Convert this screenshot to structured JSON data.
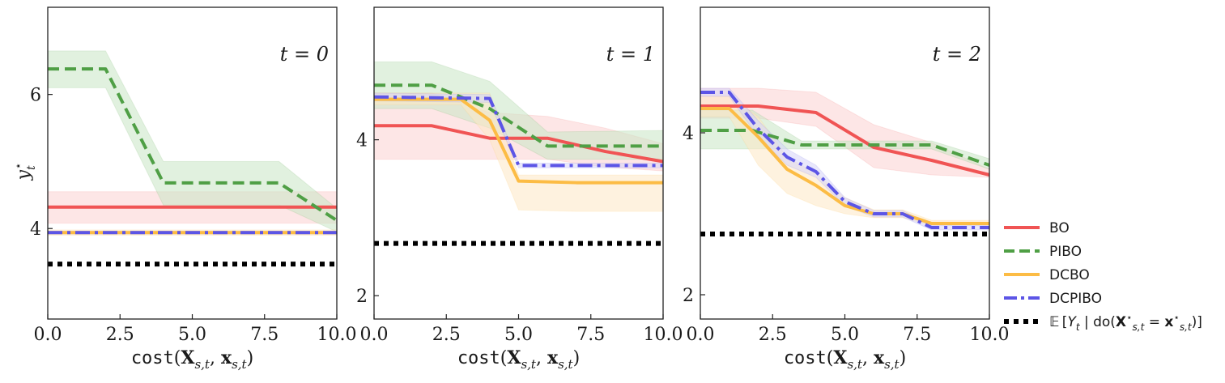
{
  "chart_data": [
    {
      "type": "line",
      "panel_label": "t = 0",
      "ylabel": "y*_t",
      "xlabel": "cost(X_{s,t}, x_{s,t})",
      "xlim": [
        0,
        10
      ],
      "ylim": [
        2.65,
        7.3
      ],
      "xticks": [
        "0.0",
        "2.5",
        "5.0",
        "7.5",
        "10.0"
      ],
      "yticks": [
        4,
        6
      ],
      "series": [
        {
          "name": "BO",
          "x": [
            0,
            10
          ],
          "y": [
            4.32,
            4.32
          ],
          "band_low": [
            4.08,
            4.08
          ],
          "band_high": [
            4.55,
            4.55
          ]
        },
        {
          "name": "PIBO",
          "x": [
            0,
            2,
            4,
            8,
            10
          ],
          "y": [
            6.38,
            6.38,
            4.68,
            4.68,
            4.12
          ],
          "band_low": [
            6.1,
            6.1,
            4.35,
            4.35,
            3.95
          ],
          "band_high": [
            6.65,
            6.65,
            5.0,
            5.0,
            4.3
          ]
        },
        {
          "name": "DCBO",
          "x": [
            0,
            10
          ],
          "y": [
            3.94,
            3.94
          ],
          "band_low": [
            3.9,
            3.9
          ],
          "band_high": [
            3.98,
            3.98
          ]
        },
        {
          "name": "DCPIBO",
          "x": [
            0,
            10
          ],
          "y": [
            3.94,
            3.94
          ],
          "band_low": [
            3.92,
            3.92
          ],
          "band_high": [
            3.96,
            3.96
          ]
        },
        {
          "name": "E[Y_t | do(X*_{s,t} = x*_{s,t})]",
          "x": [
            0,
            10
          ],
          "y": [
            3.47,
            3.47
          ]
        }
      ]
    },
    {
      "type": "line",
      "panel_label": "t = 1",
      "xlabel": "cost(X_{s,t}, x_{s,t})",
      "xlim": [
        0,
        10
      ],
      "ylim": [
        1.7,
        5.7
      ],
      "xticks": [
        "0.0",
        "2.5",
        "5.0",
        "7.5",
        "10.0"
      ],
      "yticks": [
        2,
        4
      ],
      "series": [
        {
          "name": "BO",
          "x": [
            0,
            2,
            4,
            6,
            8,
            10
          ],
          "y": [
            4.18,
            4.18,
            4.02,
            4.02,
            3.85,
            3.72
          ],
          "band_low": [
            3.75,
            3.75,
            3.75,
            3.75,
            3.65,
            3.6
          ],
          "band_high": [
            4.6,
            4.6,
            4.35,
            4.3,
            4.15,
            3.95
          ]
        },
        {
          "name": "PIBO",
          "x": [
            0,
            2,
            4,
            6,
            10
          ],
          "y": [
            4.7,
            4.7,
            4.4,
            3.92,
            3.92
          ],
          "band_low": [
            4.4,
            4.4,
            4.15,
            3.75,
            3.75
          ],
          "band_high": [
            5.0,
            5.0,
            4.75,
            4.1,
            4.12
          ]
        },
        {
          "name": "DCBO",
          "x": [
            0,
            3,
            4,
            5,
            7,
            10
          ],
          "y": [
            4.52,
            4.52,
            4.25,
            3.47,
            3.45,
            3.45
          ],
          "band_low": [
            4.45,
            4.45,
            4.0,
            3.1,
            3.08,
            3.08
          ],
          "band_high": [
            4.6,
            4.6,
            4.6,
            3.55,
            3.55,
            3.55
          ]
        },
        {
          "name": "DCPIBO",
          "x": [
            0,
            4,
            5,
            10
          ],
          "y": [
            4.55,
            4.53,
            3.67,
            3.67
          ],
          "band_low": [
            4.5,
            4.48,
            3.64,
            3.64
          ],
          "band_high": [
            4.6,
            4.58,
            3.7,
            3.7
          ]
        },
        {
          "name": "E[Y_t | do(X*_{s,t} = x*_{s,t})]",
          "x": [
            0,
            10
          ],
          "y": [
            2.67,
            2.67
          ]
        }
      ]
    },
    {
      "type": "line",
      "panel_label": "t = 2",
      "xlabel": "cost(X_{s,t}, x_{s,t})",
      "xlim": [
        0,
        10
      ],
      "ylim": [
        1.7,
        5.55
      ],
      "xticks": [
        "0.0",
        "2.5",
        "5.0",
        "7.5",
        "10.0"
      ],
      "yticks": [
        2,
        4
      ],
      "series": [
        {
          "name": "BO",
          "x": [
            0,
            2,
            4,
            6,
            8,
            10
          ],
          "y": [
            4.33,
            4.33,
            4.25,
            3.82,
            3.66,
            3.48
          ],
          "band_low": [
            4.18,
            4.18,
            4.08,
            3.57,
            3.48,
            3.45
          ],
          "band_high": [
            4.55,
            4.55,
            4.5,
            4.1,
            3.88,
            3.55
          ]
        },
        {
          "name": "PIBO",
          "x": [
            0,
            1.8,
            3.5,
            8,
            10
          ],
          "y": [
            4.03,
            4.03,
            3.85,
            3.85,
            3.6
          ],
          "band_low": [
            3.8,
            3.8,
            3.8,
            3.8,
            3.55
          ],
          "band_high": [
            4.28,
            4.28,
            3.9,
            3.9,
            3.68
          ]
        },
        {
          "name": "DCBO",
          "x": [
            0,
            1,
            2,
            3,
            4,
            5,
            6,
            7,
            8,
            10
          ],
          "y": [
            4.3,
            4.3,
            3.95,
            3.55,
            3.35,
            3.1,
            3.0,
            3.0,
            2.88,
            2.88
          ],
          "band_low": [
            4.2,
            4.2,
            3.6,
            3.25,
            3.1,
            3.0,
            2.95,
            2.95,
            2.85,
            2.85
          ],
          "band_high": [
            4.45,
            4.45,
            4.2,
            3.7,
            3.5,
            3.2,
            3.05,
            3.05,
            2.92,
            2.92
          ]
        },
        {
          "name": "DCPIBO",
          "x": [
            0,
            1,
            2,
            3,
            4,
            5,
            6,
            7,
            8,
            10
          ],
          "y": [
            4.5,
            4.5,
            4.05,
            3.7,
            3.52,
            3.15,
            3.0,
            3.0,
            2.83,
            2.83
          ],
          "band_low": [
            4.45,
            4.45,
            3.95,
            3.6,
            3.45,
            3.1,
            2.96,
            2.96,
            2.8,
            2.8
          ],
          "band_high": [
            4.55,
            4.55,
            4.15,
            3.8,
            3.6,
            3.2,
            3.04,
            3.04,
            2.86,
            2.86
          ]
        },
        {
          "name": "E[Y_t | do(X*_{s,t} = x*_{s,t})]",
          "x": [
            0,
            10
          ],
          "y": [
            2.75,
            2.75
          ]
        }
      ]
    }
  ],
  "legend": {
    "placement": "right",
    "items": [
      {
        "label": "BO",
        "color": "#f05454",
        "style": "solid"
      },
      {
        "label": "PIBO",
        "color": "#4f9f45",
        "style": "dashed"
      },
      {
        "label": "DCBO",
        "color": "#fcbc45",
        "style": "solid"
      },
      {
        "label": "DCPIBO",
        "color": "#5c55e6",
        "style": "dashdot"
      },
      {
        "label": "E[Y_t | do(X*_{s,t} = x*_{s,t})]",
        "color": "#000000",
        "style": "dotted"
      }
    ]
  },
  "colors": {
    "BO": "#f05454",
    "PIBO": "#4f9f45",
    "DCBO": "#fcbc45",
    "DCPIBO": "#5c55e6",
    "optimum": "#000000",
    "BO_band": "#fbd2d2",
    "PIBO_band": "#c9e6c4",
    "DCBO_band": "#fde8c4",
    "DCPIBO_band": "#d6d3f8"
  }
}
